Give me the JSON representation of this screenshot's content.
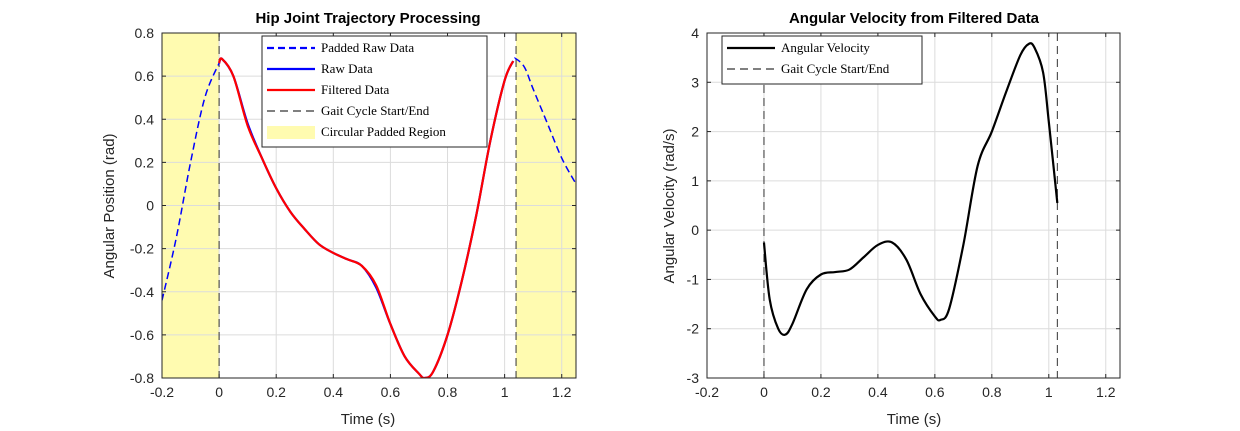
{
  "chart_data": [
    {
      "type": "line",
      "title": "Hip Joint Trajectory Processing",
      "xlabel": "Time (s)",
      "ylabel": "Angular Position (rad)",
      "xlim": [
        -0.2,
        1.25
      ],
      "ylim": [
        -0.8,
        0.8
      ],
      "xticks": [
        -0.2,
        0,
        0.2,
        0.4,
        0.6,
        0.8,
        1,
        1.2
      ],
      "xtick_labels": [
        "-0.2",
        "0",
        "0.2",
        "0.4",
        "0.6",
        "0.8",
        "1",
        "1.2"
      ],
      "yticks": [
        -0.8,
        -0.6,
        -0.4,
        -0.2,
        0,
        0.2,
        0.4,
        0.6,
        0.8
      ],
      "ytick_labels": [
        "-0.8",
        "-0.6",
        "-0.4",
        "-0.2",
        "0",
        "0.2",
        "0.4",
        "0.6",
        "0.8"
      ],
      "grid": true,
      "legend_position": "top-right",
      "shaded_regions": [
        {
          "name": "Circular Padded Region",
          "x": [
            -0.2,
            0
          ],
          "color": "#fffbb0"
        },
        {
          "name": "Circular Padded Region",
          "x": [
            1.04,
            1.25
          ],
          "color": "#fffbb0"
        }
      ],
      "vertical_lines": [
        {
          "name": "Gait Cycle Start/End",
          "x": 0
        },
        {
          "name": "Gait Cycle Start/End",
          "x": 1.04
        }
      ],
      "series": [
        {
          "name": "Padded Raw Data",
          "color": "#0000ff",
          "style": "dashed",
          "x": [
            -0.2,
            -0.15,
            -0.1,
            -0.05,
            0,
            0.01,
            0.05,
            0.1,
            0.15,
            0.2,
            0.25,
            0.3,
            0.35,
            0.4,
            0.45,
            0.5,
            0.55,
            0.6,
            0.65,
            0.7,
            0.72,
            0.75,
            0.8,
            0.85,
            0.9,
            0.95,
            1.0,
            1.03,
            1.04,
            1.07,
            1.1,
            1.15,
            1.2,
            1.25
          ],
          "y": [
            -0.44,
            -0.15,
            0.2,
            0.5,
            0.66,
            0.68,
            0.6,
            0.38,
            0.22,
            0.08,
            -0.03,
            -0.11,
            -0.18,
            -0.22,
            -0.25,
            -0.28,
            -0.38,
            -0.55,
            -0.7,
            -0.78,
            -0.8,
            -0.77,
            -0.6,
            -0.35,
            -0.05,
            0.3,
            0.58,
            0.67,
            0.68,
            0.64,
            0.54,
            0.38,
            0.22,
            0.1
          ]
        },
        {
          "name": "Raw Data",
          "color": "#0000ff",
          "style": "solid",
          "x": [
            0,
            0.01,
            0.05,
            0.1,
            0.15,
            0.2,
            0.25,
            0.3,
            0.35,
            0.4,
            0.45,
            0.5,
            0.55,
            0.6,
            0.65,
            0.7,
            0.72,
            0.75,
            0.8,
            0.85,
            0.9,
            0.95,
            1.0,
            1.03
          ],
          "y": [
            0.66,
            0.68,
            0.6,
            0.38,
            0.22,
            0.08,
            -0.03,
            -0.11,
            -0.18,
            -0.22,
            -0.25,
            -0.28,
            -0.38,
            -0.55,
            -0.7,
            -0.78,
            -0.8,
            -0.77,
            -0.6,
            -0.35,
            -0.05,
            0.3,
            0.58,
            0.67
          ]
        },
        {
          "name": "Filtered Data",
          "color": "#ff0000",
          "style": "solid",
          "x": [
            0,
            0.01,
            0.05,
            0.1,
            0.15,
            0.2,
            0.25,
            0.3,
            0.35,
            0.4,
            0.45,
            0.5,
            0.55,
            0.6,
            0.65,
            0.7,
            0.72,
            0.75,
            0.8,
            0.85,
            0.9,
            0.95,
            1.0,
            1.03
          ],
          "y": [
            0.66,
            0.68,
            0.6,
            0.37,
            0.22,
            0.08,
            -0.03,
            -0.11,
            -0.18,
            -0.22,
            -0.25,
            -0.28,
            -0.37,
            -0.55,
            -0.7,
            -0.78,
            -0.8,
            -0.77,
            -0.6,
            -0.35,
            -0.05,
            0.3,
            0.58,
            0.67
          ]
        }
      ],
      "legend": [
        {
          "label": "Padded Raw Data",
          "kind": "line",
          "color": "#0000ff",
          "style": "dashed"
        },
        {
          "label": "Raw Data",
          "kind": "line",
          "color": "#0000ff",
          "style": "solid"
        },
        {
          "label": "Filtered Data",
          "kind": "line",
          "color": "#ff0000",
          "style": "solid"
        },
        {
          "label": "Gait Cycle Start/End",
          "kind": "line",
          "color": "#000000",
          "style": "dashed-thin"
        },
        {
          "label": "Circular Padded Region",
          "kind": "patch",
          "color": "#fffbb0"
        }
      ]
    },
    {
      "type": "line",
      "title": "Angular Velocity from Filtered Data",
      "xlabel": "Time (s)",
      "ylabel": "Angular Velocity (rad/s)",
      "xlim": [
        -0.2,
        1.25
      ],
      "ylim": [
        -3,
        4
      ],
      "xticks": [
        -0.2,
        0,
        0.2,
        0.4,
        0.6,
        0.8,
        1,
        1.2
      ],
      "xtick_labels": [
        "-0.2",
        "0",
        "0.2",
        "0.4",
        "0.6",
        "0.8",
        "1",
        "1.2"
      ],
      "yticks": [
        -3,
        -2,
        -1,
        0,
        1,
        2,
        3,
        4
      ],
      "ytick_labels": [
        "-3",
        "-2",
        "-1",
        "0",
        "1",
        "2",
        "3",
        "4"
      ],
      "grid": true,
      "legend_position": "top-left",
      "shaded_regions": [],
      "vertical_lines": [
        {
          "name": "Gait Cycle Start/End",
          "x": 0
        },
        {
          "name": "Gait Cycle Start/End",
          "x": 1.03
        }
      ],
      "series": [
        {
          "name": "Angular Velocity",
          "color": "#000000",
          "style": "solid",
          "x": [
            0,
            0.02,
            0.05,
            0.075,
            0.1,
            0.15,
            0.2,
            0.25,
            0.3,
            0.35,
            0.4,
            0.45,
            0.5,
            0.55,
            0.6,
            0.62,
            0.65,
            0.7,
            0.75,
            0.8,
            0.85,
            0.9,
            0.93,
            0.95,
            0.98,
            1.0,
            1.03
          ],
          "y": [
            -0.25,
            -1.4,
            -2.0,
            -2.12,
            -1.9,
            -1.2,
            -0.9,
            -0.85,
            -0.8,
            -0.55,
            -0.3,
            -0.25,
            -0.6,
            -1.3,
            -1.75,
            -1.82,
            -1.6,
            -0.3,
            1.3,
            2.0,
            2.8,
            3.55,
            3.78,
            3.7,
            3.2,
            2.2,
            0.55
          ]
        }
      ],
      "legend": [
        {
          "label": "Angular Velocity",
          "kind": "line",
          "color": "#000000",
          "style": "solid"
        },
        {
          "label": "Gait Cycle Start/End",
          "kind": "line",
          "color": "#000000",
          "style": "dashed-thin"
        }
      ]
    }
  ]
}
